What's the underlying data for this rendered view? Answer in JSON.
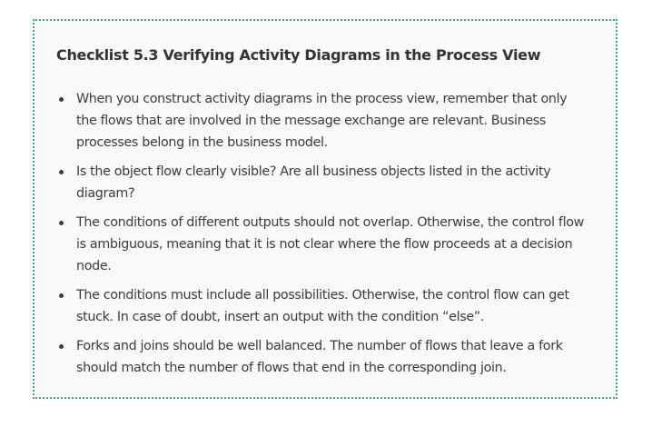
{
  "checklist": {
    "title": "Checklist 5.3 Verifying Activity Diagrams in the Process View",
    "items": [
      "When you construct activity diagrams in the process view, remember that only the flows that are involved in the message exchange are relevant. Business processes belong in the business model.",
      "Is the object flow clearly visible? Are all business objects listed in the activity diagram?",
      "The conditions of different outputs should not overlap. Otherwise, the control flow is ambiguous, meaning that it is not clear where the flow proceeds at a decision node.",
      "The conditions must include all possibilities. Otherwise, the control flow can get stuck. In case of doubt, insert an output with the condition “else”.",
      "Forks and joins should be well balanced. The number of flows that leave a fork should match the number of flows that end in the corresponding join."
    ]
  }
}
